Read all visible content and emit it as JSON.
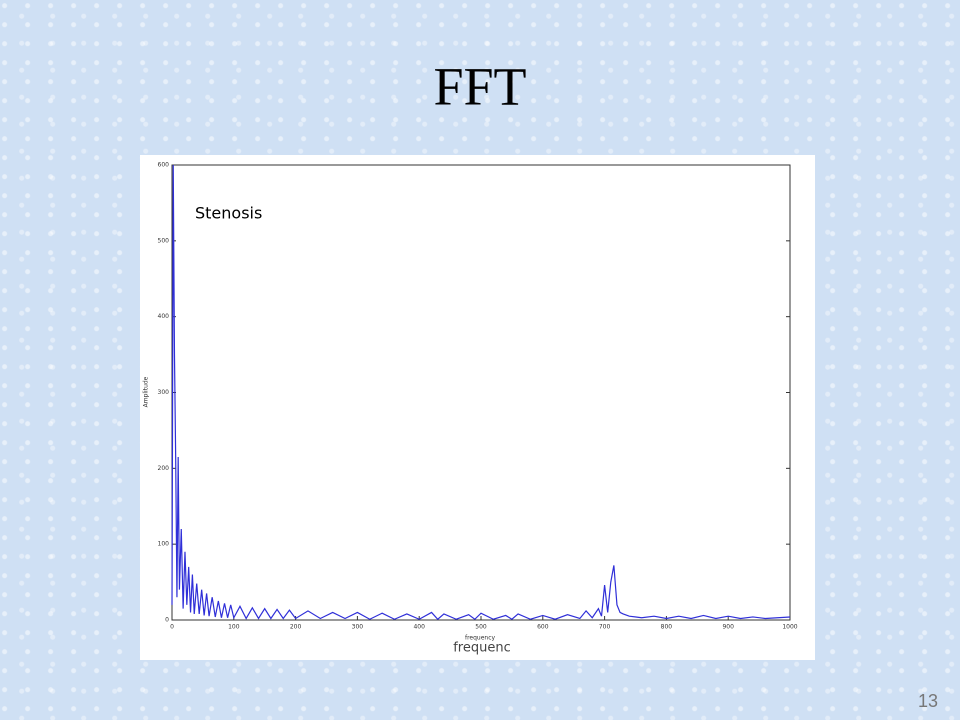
{
  "slide_title": "FFT",
  "slide_number": "13",
  "chart_data": {
    "type": "line",
    "annotation": "Stenosis",
    "ylabel": "Amplitude",
    "xlabel": "frequency",
    "xlabel_overlay": "frequenc",
    "x": [
      0,
      2,
      4,
      6,
      8,
      10,
      12,
      15,
      18,
      21,
      24,
      27,
      30,
      33,
      36,
      40,
      44,
      48,
      52,
      56,
      60,
      65,
      70,
      75,
      80,
      85,
      90,
      95,
      100,
      110,
      120,
      130,
      140,
      150,
      160,
      170,
      180,
      190,
      200,
      220,
      240,
      260,
      280,
      300,
      320,
      340,
      360,
      380,
      400,
      420,
      430,
      440,
      460,
      480,
      490,
      500,
      520,
      540,
      550,
      560,
      580,
      600,
      620,
      640,
      660,
      670,
      680,
      690,
      695,
      700,
      705,
      710,
      715,
      720,
      725,
      730,
      740,
      760,
      780,
      800,
      820,
      840,
      860,
      880,
      900,
      920,
      940,
      960,
      980,
      1000
    ],
    "series": [
      {
        "name": "Amplitude",
        "color": "#2f2fd8",
        "values": [
          20,
          600,
          350,
          210,
          30,
          215,
          40,
          120,
          15,
          90,
          20,
          70,
          10,
          60,
          8,
          48,
          8,
          40,
          6,
          35,
          5,
          30,
          4,
          25,
          3,
          22,
          3,
          20,
          3,
          18,
          2,
          16,
          2,
          15,
          2,
          14,
          2,
          13,
          2,
          12,
          2,
          10,
          2,
          10,
          1,
          9,
          1,
          8,
          1,
          10,
          1,
          8,
          1,
          7,
          1,
          9,
          1,
          6,
          1,
          8,
          1,
          6,
          1,
          7,
          2,
          12,
          3,
          15,
          5,
          46,
          10,
          50,
          72,
          20,
          10,
          8,
          5,
          3,
          5,
          2,
          5,
          2,
          6,
          2,
          5,
          2,
          4,
          2,
          3,
          4
        ]
      }
    ],
    "xlim": [
      0,
      1000
    ],
    "ylim": [
      0,
      600
    ],
    "xticks": [
      0,
      100,
      200,
      300,
      400,
      500,
      600,
      700,
      800,
      900,
      1000
    ],
    "yticks": [
      0,
      100,
      200,
      300,
      400,
      500,
      600
    ]
  }
}
